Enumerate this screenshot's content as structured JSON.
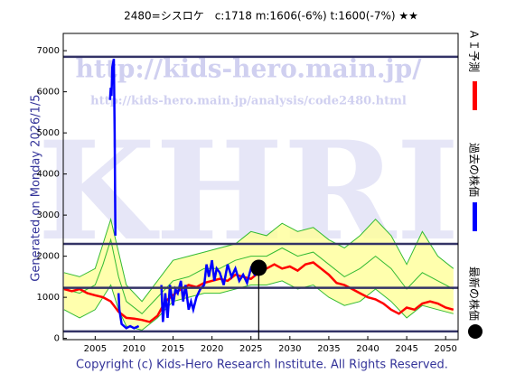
{
  "chart_data": {
    "type": "line",
    "title": "2480=シスロケ　c:1718  m:1606(-6%)  t:1600(-7%)  ★★",
    "note": "Generated on Monday 2026/1/5.",
    "footer": "Copyright (c) Kids-Hero Research Institute. All Rights Reserved.",
    "watermarks": [
      "http://kids-hero.main.jp/",
      "http://kids-hero.main.jp/analysis/code2480.html",
      "KHRI"
    ],
    "xlim": [
      2000.9,
      2051.6
    ],
    "ylim": [
      -30,
      7420
    ],
    "xticks": [
      2005,
      2010,
      2015,
      2020,
      2025,
      2030,
      2035,
      2040,
      2045,
      2050
    ],
    "yticks": [
      0,
      1000,
      2000,
      3000,
      4000,
      5000,
      6000,
      7000
    ],
    "hlines": {
      "color": "#333366",
      "values": [
        6850,
        2300,
        1230,
        170
      ]
    },
    "band": {
      "fill": "#ffff99",
      "line_color": "#33bb33",
      "x": [
        2001,
        2003,
        2005,
        2006,
        2007,
        2008,
        2009,
        2011,
        2013,
        2015,
        2017,
        2019,
        2021,
        2023,
        2025,
        2027,
        2029,
        2031,
        2033,
        2035,
        2037,
        2039,
        2041,
        2043,
        2045,
        2047,
        2049,
        2051
      ],
      "upper": [
        1600,
        1500,
        1700,
        2300,
        2900,
        2100,
        1300,
        900,
        1400,
        1900,
        2000,
        2100,
        2200,
        2300,
        2600,
        2500,
        2800,
        2600,
        2700,
        2400,
        2200,
        2500,
        2900,
        2500,
        1800,
        2600,
        2000,
        1700
      ],
      "middle": [
        1200,
        1100,
        1300,
        1800,
        2400,
        1500,
        900,
        600,
        1000,
        1400,
        1500,
        1700,
        1700,
        1900,
        2000,
        2000,
        2200,
        2000,
        2100,
        1800,
        1500,
        1700,
        2000,
        1700,
        1200,
        1600,
        1400,
        1200
      ],
      "lower": [
        700,
        500,
        700,
        1000,
        1300,
        700,
        300,
        200,
        500,
        900,
        1000,
        1100,
        1100,
        1200,
        1300,
        1300,
        1400,
        1200,
        1300,
        1000,
        800,
        900,
        1200,
        900,
        500,
        800,
        700,
        600
      ]
    },
    "series": [
      {
        "name": "ＡＩ予測",
        "color": "#ff0000",
        "x": [
          2001,
          2002,
          2003,
          2004,
          2005,
          2006,
          2007,
          2008,
          2009,
          2010,
          2011,
          2012,
          2013,
          2014,
          2015,
          2016,
          2017,
          2018,
          2019,
          2020,
          2021,
          2022,
          2023,
          2024,
          2025,
          2026,
          2027,
          2028,
          2029,
          2030,
          2031,
          2032,
          2033,
          2034,
          2035,
          2036,
          2037,
          2038,
          2039,
          2040,
          2041,
          2042,
          2043,
          2044,
          2045,
          2046,
          2047,
          2048,
          2049,
          2050,
          2051
        ],
        "values": [
          1200,
          1150,
          1200,
          1100,
          1050,
          1000,
          900,
          650,
          500,
          480,
          450,
          400,
          550,
          900,
          1050,
          1200,
          1300,
          1250,
          1350,
          1400,
          1450,
          1400,
          1550,
          1500,
          1450,
          1600,
          1700,
          1800,
          1700,
          1750,
          1650,
          1800,
          1850,
          1700,
          1550,
          1350,
          1300,
          1200,
          1100,
          1000,
          950,
          850,
          700,
          600,
          750,
          700,
          850,
          900,
          850,
          750,
          700
        ]
      },
      {
        "name": "過去の株価",
        "color": "#0000ff",
        "x": [
          2006.9,
          2007.0,
          2007.1,
          2007.2,
          2007.4,
          2007.5,
          2007.6,
          2007.8,
          2008.0,
          2008.1,
          2008.4,
          2009,
          2009.5,
          2010,
          2010.6,
          2011,
          2013.5,
          2013.7,
          2014,
          2014.3,
          2014.6,
          2015,
          2015.3,
          2015.6,
          2016,
          2016.3,
          2016.6,
          2017,
          2017.3,
          2017.6,
          2018,
          2018.5,
          2019,
          2019.3,
          2019.6,
          2020,
          2020.3,
          2020.6,
          2021,
          2021.5,
          2022,
          2022.5,
          2023,
          2023.5,
          2024,
          2024.5,
          2025,
          2025.5,
          2026
        ],
        "values": [
          5800,
          6100,
          5900,
          6600,
          6800,
          5000,
          2500,
          null,
          1100,
          700,
          350,
          250,
          300,
          250,
          300,
          null,
          1300,
          400,
          1100,
          500,
          1300,
          800,
          1200,
          1100,
          1400,
          900,
          1300,
          700,
          900,
          700,
          1000,
          1200,
          1300,
          1800,
          1500,
          1900,
          1400,
          1700,
          1600,
          1300,
          1800,
          1500,
          1700,
          1400,
          1550,
          1350,
          1700,
          1550,
          1718
        ]
      },
      {
        "name": "最新の株価",
        "color": "#000000",
        "x": [
          2026
        ],
        "values": [
          1718
        ]
      }
    ]
  }
}
